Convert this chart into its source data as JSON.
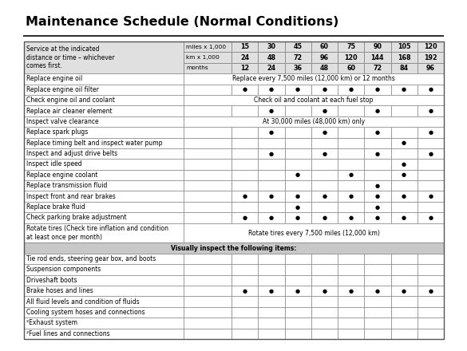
{
  "title": "Maintenance Schedule (Normal Conditions)",
  "unit_labels": [
    "miles x 1,000",
    "km x 1,000",
    "months"
  ],
  "val_rows": [
    [
      "15",
      "30",
      "45",
      "60",
      "75",
      "90",
      "105",
      "120"
    ],
    [
      "24",
      "48",
      "72",
      "96",
      "120",
      "144",
      "168",
      "192"
    ],
    [
      "12",
      "24",
      "36",
      "48",
      "60",
      "72",
      "84",
      "96"
    ]
  ],
  "rows": [
    {
      "label": "Replace engine oil",
      "span_text": "Replace every 7,500 miles (12,000 km) or 12 months",
      "dots": [],
      "tall": false
    },
    {
      "label": "Replace engine oil filter",
      "span_text": null,
      "dots": [
        0,
        1,
        2,
        3,
        4,
        5,
        6,
        7
      ],
      "tall": false
    },
    {
      "label": "Check engine oil and coolant",
      "span_text": "Check oil and coolant at each fuel stop",
      "dots": [],
      "tall": false
    },
    {
      "label": "Replace air cleaner element",
      "span_text": null,
      "dots": [
        1,
        3,
        5,
        7
      ],
      "tall": false
    },
    {
      "label": "Inspect valve clearance",
      "span_text": "At 30,000 miles (48,000 km) only",
      "dots": [],
      "tall": false
    },
    {
      "label": "Replace spark plugs",
      "span_text": null,
      "dots": [
        1,
        3,
        5,
        7
      ],
      "tall": false
    },
    {
      "label": "Replace timing belt and inspect water pump",
      "span_text": null,
      "dots": [
        6
      ],
      "tall": false
    },
    {
      "label": "Inspect and adjust drive belts",
      "span_text": null,
      "dots": [
        1,
        3,
        5,
        7
      ],
      "tall": false
    },
    {
      "label": "Inspect idle speed",
      "span_text": null,
      "dots": [
        6
      ],
      "tall": false
    },
    {
      "label": "Replace engine coolant",
      "span_text": null,
      "dots": [
        2,
        4,
        6
      ],
      "tall": false
    },
    {
      "label": "Replace transmission fluid",
      "span_text": null,
      "dots": [
        5
      ],
      "tall": false
    },
    {
      "label": "Inspect front and rear brakes",
      "span_text": null,
      "dots": [
        0,
        1,
        2,
        3,
        4,
        5,
        6,
        7
      ],
      "tall": false
    },
    {
      "label": "Replace brake fluid",
      "span_text": null,
      "dots": [
        2,
        5
      ],
      "tall": false
    },
    {
      "label": "Check parking brake adjustment",
      "span_text": null,
      "dots": [
        0,
        1,
        2,
        3,
        4,
        5,
        6,
        7
      ],
      "tall": false
    },
    {
      "label": "Rotate tires (Check tire inflation and condition\nat least once per month)",
      "span_text": "Rotate tires every 7,500 miles (12,000 km)",
      "dots": [],
      "tall": true
    },
    {
      "label": "VISUALLY_INSPECT",
      "span_text": "Visually inspect the following items:",
      "dots": [],
      "tall": false
    },
    {
      "label": "Tie rod ends, steering gear box, and boots",
      "span_text": null,
      "dots": [],
      "tall": false
    },
    {
      "label": "Suspension components",
      "span_text": null,
      "dots": [],
      "tall": false
    },
    {
      "label": "Driveshaft boots",
      "span_text": null,
      "dots": [],
      "tall": false
    },
    {
      "label": "Brake hoses and lines",
      "span_text": null,
      "dots": [
        0,
        1,
        2,
        3,
        4,
        5,
        6,
        7
      ],
      "tall": false
    },
    {
      "label": "All fluid levels and condition of fluids",
      "span_text": null,
      "dots": [],
      "tall": false
    },
    {
      "label": "Cooling system hoses and connections",
      "span_text": null,
      "dots": [],
      "tall": false
    },
    {
      "label": "²Exhaust system",
      "span_text": null,
      "dots": [],
      "tall": false
    },
    {
      "label": "²Fuel lines and connections",
      "span_text": null,
      "dots": [],
      "tall": false
    }
  ],
  "title_fontsize": 11.5,
  "label_fontsize": 5.5,
  "header_fontsize": 5.8,
  "dot_size": 5,
  "bg_header": "#e0e0e0",
  "bg_white": "#ffffff",
  "bg_visually": "#c8c8c8",
  "border_color": "#888888",
  "dot_color": "#000000"
}
